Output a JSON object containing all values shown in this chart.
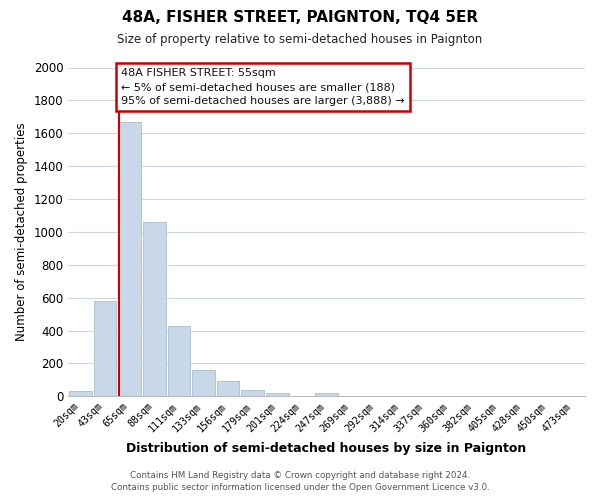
{
  "title": "48A, FISHER STREET, PAIGNTON, TQ4 5ER",
  "subtitle": "Size of property relative to semi-detached houses in Paignton",
  "xlabel": "Distribution of semi-detached houses by size in Paignton",
  "ylabel": "Number of semi-detached properties",
  "bin_labels": [
    "20sqm",
    "43sqm",
    "65sqm",
    "88sqm",
    "111sqm",
    "133sqm",
    "156sqm",
    "179sqm",
    "201sqm",
    "224sqm",
    "247sqm",
    "269sqm",
    "292sqm",
    "314sqm",
    "337sqm",
    "360sqm",
    "382sqm",
    "405sqm",
    "428sqm",
    "450sqm",
    "473sqm"
  ],
  "bar_values": [
    30,
    580,
    1670,
    1060,
    430,
    160,
    90,
    40,
    20,
    0,
    20,
    0,
    0,
    0,
    0,
    0,
    0,
    0,
    0,
    0,
    0
  ],
  "bar_color": "#c8d8e8",
  "bar_edge_color": "#a8bece",
  "ylim": [
    0,
    2000
  ],
  "yticks": [
    0,
    200,
    400,
    600,
    800,
    1000,
    1200,
    1400,
    1600,
    1800,
    2000
  ],
  "marker_color": "#cc0000",
  "annotation_title": "48A FISHER STREET: 55sqm",
  "annotation_line1": "← 5% of semi-detached houses are smaller (188)",
  "annotation_line2": "95% of semi-detached houses are larger (3,888) →",
  "annotation_box_color": "#ffffff",
  "annotation_box_edge": "#cc0000",
  "footer_line1": "Contains HM Land Registry data © Crown copyright and database right 2024.",
  "footer_line2": "Contains public sector information licensed under the Open Government Licence v3.0.",
  "background_color": "#ffffff",
  "grid_color": "#ccd8e4"
}
